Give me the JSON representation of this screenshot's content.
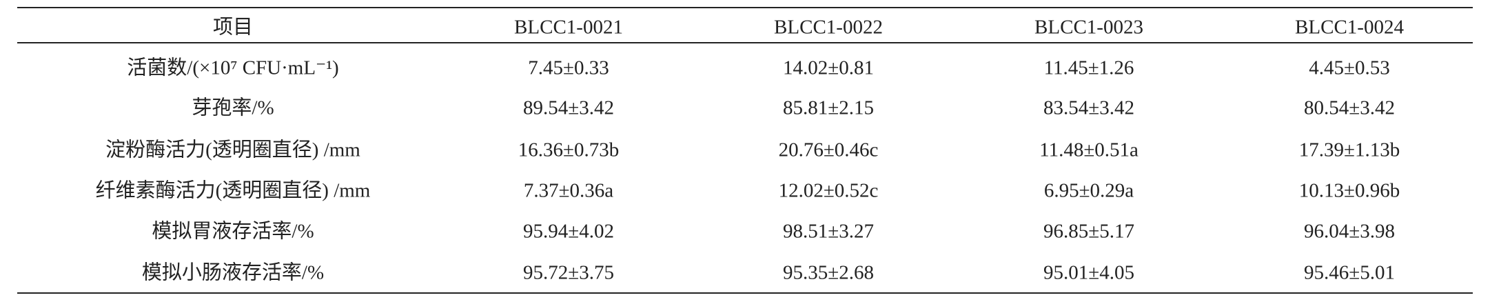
{
  "table": {
    "header": [
      "项目",
      "BLCC1-0021",
      "BLCC1-0022",
      "BLCC1-0023",
      "BLCC1-0024"
    ],
    "rows": [
      [
        "活菌数/(×10⁷ CFU·mL⁻¹)",
        "7.45±0.33",
        "14.02±0.81",
        "11.45±1.26",
        "4.45±0.53"
      ],
      [
        "芽孢率/%",
        "89.54±3.42",
        "85.81±2.15",
        "83.54±3.42",
        "80.54±3.42"
      ],
      [
        "淀粉酶活力(透明圈直径) /mm",
        "16.36±0.73b",
        "20.76±0.46c",
        "11.48±0.51a",
        "17.39±1.13b"
      ],
      [
        "纤维素酶活力(透明圈直径) /mm",
        "7.37±0.36a",
        "12.02±0.52c",
        "6.95±0.29a",
        "10.13±0.96b"
      ],
      [
        "模拟胃液存活率/%",
        "95.94±4.02",
        "98.51±3.27",
        "96.85±5.17",
        "96.04±3.98"
      ],
      [
        "模拟小肠液存活率/%",
        "95.72±3.75",
        "95.35±2.68",
        "95.01±4.05",
        "95.46±5.01"
      ]
    ]
  }
}
